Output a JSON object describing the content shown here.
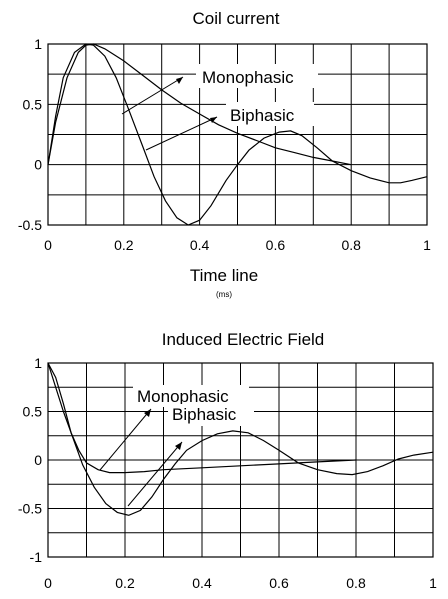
{
  "chart_data": [
    {
      "type": "line",
      "title": "Coil current",
      "xlabel": "Time line",
      "xunit": "(ms)",
      "ylabel": "",
      "xlim": [
        0,
        1
      ],
      "ylim": [
        -0.5,
        1
      ],
      "xticks": [
        "0",
        "0.2",
        "0.4",
        "0.6",
        "0.8",
        "1"
      ],
      "yticks": [
        "1",
        "0.5",
        "0",
        "-0.5"
      ],
      "grid": true,
      "series": [
        {
          "name": "Monophasic",
          "points": [
            [
              0,
              0
            ],
            [
              0.02,
              0.35
            ],
            [
              0.05,
              0.72
            ],
            [
              0.08,
              0.93
            ],
            [
              0.1,
              0.99
            ],
            [
              0.12,
              1.0
            ],
            [
              0.15,
              0.96
            ],
            [
              0.2,
              0.86
            ],
            [
              0.25,
              0.74
            ],
            [
              0.3,
              0.62
            ],
            [
              0.35,
              0.51
            ],
            [
              0.4,
              0.42
            ],
            [
              0.45,
              0.33
            ],
            [
              0.5,
              0.26
            ],
            [
              0.55,
              0.2
            ],
            [
              0.6,
              0.14
            ],
            [
              0.65,
              0.1
            ],
            [
              0.7,
              0.06
            ],
            [
              0.75,
              0.03
            ],
            [
              0.8,
              0.0
            ]
          ]
        },
        {
          "name": "Biphasic",
          "points": [
            [
              0,
              0
            ],
            [
              0.02,
              0.4
            ],
            [
              0.04,
              0.72
            ],
            [
              0.07,
              0.93
            ],
            [
              0.1,
              1.0
            ],
            [
              0.12,
              0.99
            ],
            [
              0.15,
              0.9
            ],
            [
              0.18,
              0.72
            ],
            [
              0.21,
              0.48
            ],
            [
              0.25,
              0.15
            ],
            [
              0.28,
              -0.1
            ],
            [
              0.31,
              -0.3
            ],
            [
              0.34,
              -0.44
            ],
            [
              0.37,
              -0.5
            ],
            [
              0.4,
              -0.46
            ],
            [
              0.43,
              -0.34
            ],
            [
              0.47,
              -0.13
            ],
            [
              0.5,
              0.0
            ],
            [
              0.53,
              0.12
            ],
            [
              0.57,
              0.22
            ],
            [
              0.61,
              0.27
            ],
            [
              0.64,
              0.28
            ],
            [
              0.67,
              0.24
            ],
            [
              0.71,
              0.14
            ],
            [
              0.75,
              0.03
            ],
            [
              0.8,
              -0.05
            ],
            [
              0.85,
              -0.11
            ],
            [
              0.9,
              -0.15
            ],
            [
              0.93,
              -0.15
            ],
            [
              0.96,
              -0.13
            ],
            [
              1.0,
              -0.1
            ]
          ]
        }
      ],
      "annotations": [
        "Monophasic",
        "Biphasic"
      ]
    },
    {
      "type": "line",
      "title": "Induced Electric Field",
      "xlabel": "",
      "ylabel": "",
      "xlim": [
        0,
        1
      ],
      "ylim": [
        -1,
        1
      ],
      "xticks": [
        "0",
        "0.2",
        "0.4",
        "0.6",
        "0.8",
        "1"
      ],
      "yticks": [
        "1",
        "0.5",
        "0",
        "-0.5",
        "-1"
      ],
      "grid": true,
      "series": [
        {
          "name": "Monophasic",
          "points": [
            [
              0,
              1.0
            ],
            [
              0.02,
              0.75
            ],
            [
              0.04,
              0.5
            ],
            [
              0.06,
              0.28
            ],
            [
              0.08,
              0.1
            ],
            [
              0.1,
              -0.03
            ],
            [
              0.13,
              -0.1
            ],
            [
              0.16,
              -0.13
            ],
            [
              0.2,
              -0.13
            ],
            [
              0.25,
              -0.12
            ],
            [
              0.3,
              -0.1
            ],
            [
              0.4,
              -0.08
            ],
            [
              0.5,
              -0.06
            ],
            [
              0.6,
              -0.04
            ],
            [
              0.7,
              -0.02
            ],
            [
              0.8,
              0.0
            ]
          ]
        },
        {
          "name": "Biphasic",
          "points": [
            [
              0,
              1.0
            ],
            [
              0.02,
              0.85
            ],
            [
              0.04,
              0.58
            ],
            [
              0.06,
              0.28
            ],
            [
              0.09,
              -0.05
            ],
            [
              0.12,
              -0.28
            ],
            [
              0.15,
              -0.45
            ],
            [
              0.18,
              -0.54
            ],
            [
              0.21,
              -0.57
            ],
            [
              0.24,
              -0.52
            ],
            [
              0.27,
              -0.38
            ],
            [
              0.3,
              -0.2
            ],
            [
              0.33,
              -0.04
            ],
            [
              0.36,
              0.1
            ],
            [
              0.4,
              0.2
            ],
            [
              0.44,
              0.27
            ],
            [
              0.48,
              0.3
            ],
            [
              0.52,
              0.28
            ],
            [
              0.56,
              0.2
            ],
            [
              0.6,
              0.1
            ],
            [
              0.65,
              -0.03
            ],
            [
              0.7,
              -0.1
            ],
            [
              0.75,
              -0.14
            ],
            [
              0.79,
              -0.15
            ],
            [
              0.83,
              -0.12
            ],
            [
              0.87,
              -0.06
            ],
            [
              0.91,
              0.01
            ],
            [
              0.95,
              0.05
            ],
            [
              1.0,
              0.08
            ]
          ]
        }
      ],
      "annotations": [
        "Monophasic",
        "Biphasic"
      ]
    }
  ]
}
